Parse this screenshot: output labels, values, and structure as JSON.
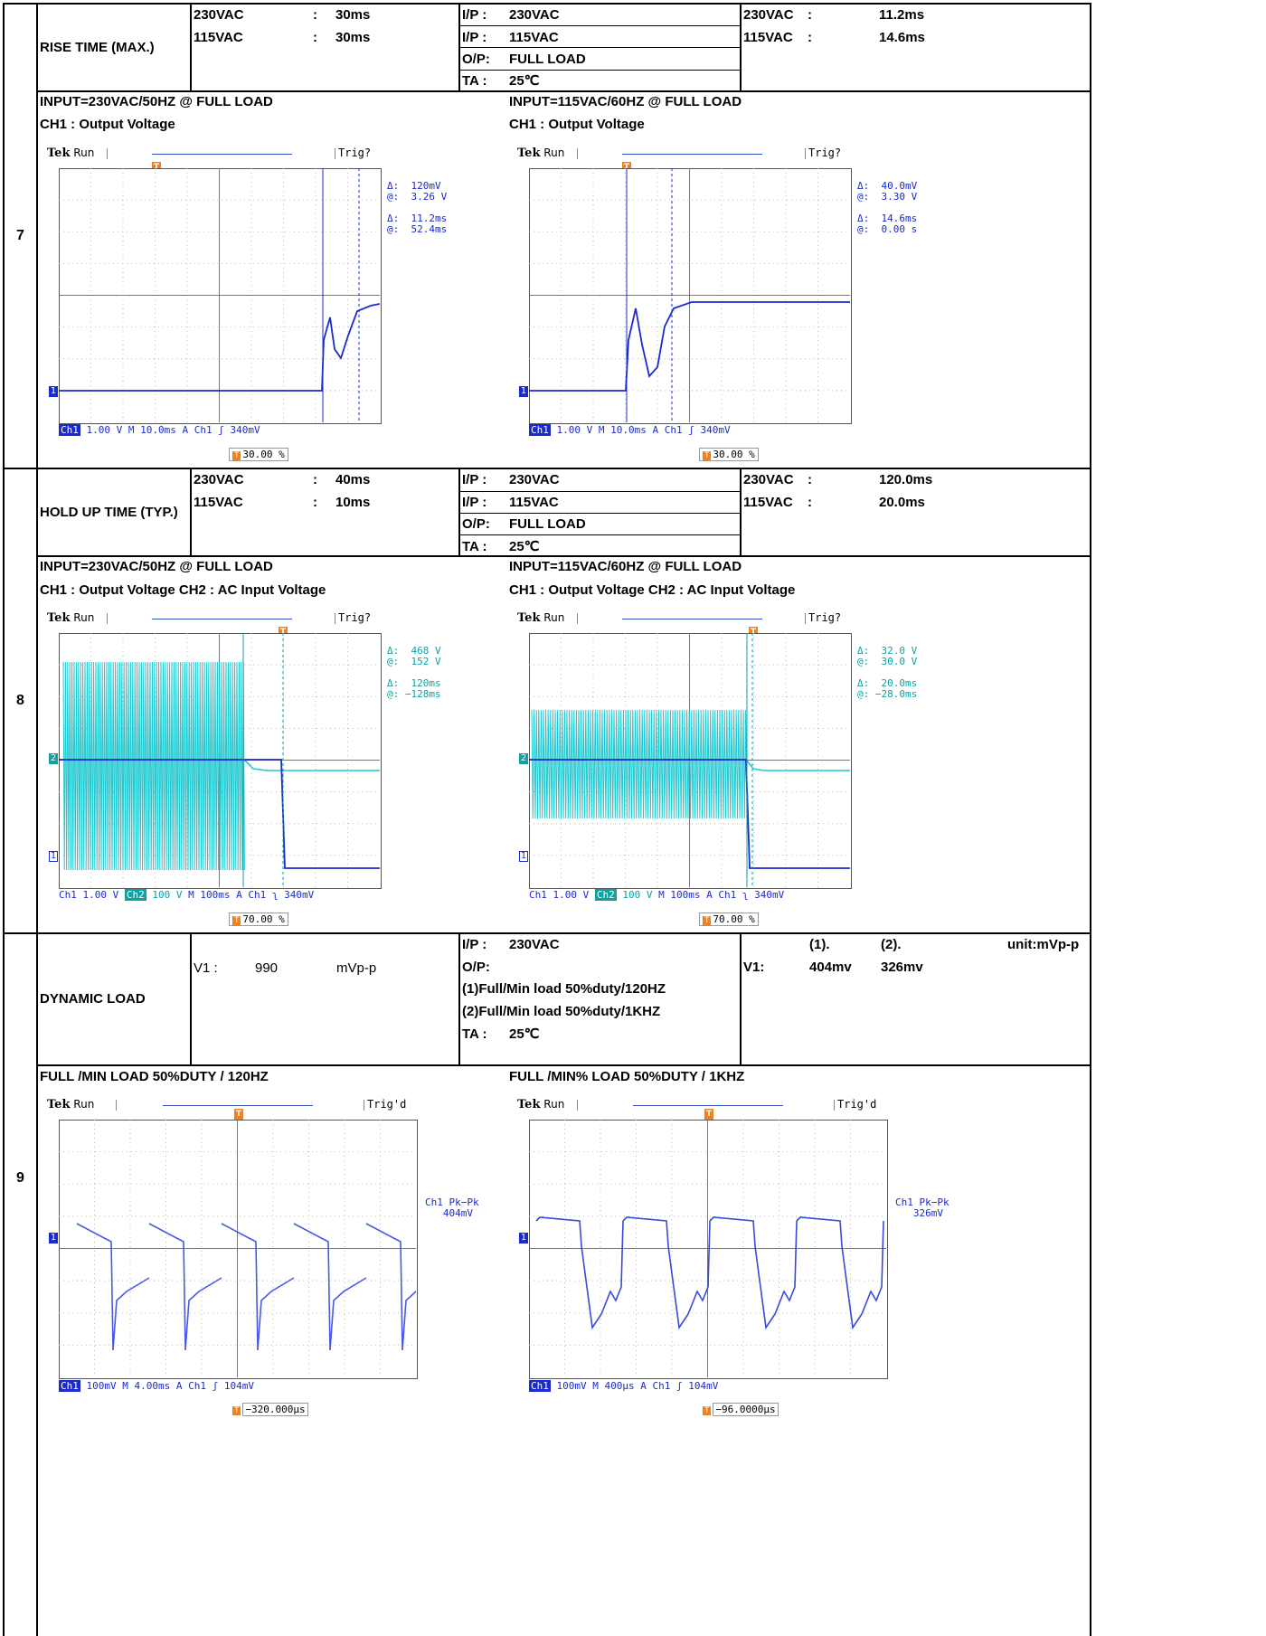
{
  "rows": [
    {
      "number": "7",
      "item": "RISE TIME (MAX.)",
      "spec": [
        {
          "input": "230VAC",
          "sep": ":",
          "value": "30ms"
        },
        {
          "input": "115VAC",
          "sep": ":",
          "value": "30ms"
        }
      ],
      "conditions": [
        {
          "label": "I/P :",
          "value": "230VAC"
        },
        {
          "label": "I/P :",
          "value": "115VAC"
        },
        {
          "label": "O/P:",
          "value": "FULL  LOAD"
        },
        {
          "label": "TA :",
          "value": "25℃"
        }
      ],
      "result": [
        {
          "input": "230VAC",
          "sep": ":",
          "value": "11.2ms"
        },
        {
          "input": "115VAC",
          "sep": ":",
          "value": "14.6ms"
        }
      ],
      "captions": [
        {
          "line1": "INPUT=230VAC/50HZ @ FULL LOAD",
          "line2": "CH1 : Output Voltage"
        },
        {
          "line1": "INPUT=115VAC/60HZ @ FULL LOAD",
          "line2": "CH1 : Output Voltage"
        }
      ],
      "scopes": [
        {
          "brand": "Tek",
          "state": "Run",
          "trig": "Trig?",
          "meas": "Δ:  120mV\n@:  3.26 V\n\nΔ:  11.2ms\n@:  52.4ms",
          "ch1": "Ch1",
          "ch1scale": "1.00 V",
          "time": "M 10.0ms",
          "trigsrc": "A  Ch1  ʃ  340mV",
          "pct": "30.00 %"
        },
        {
          "brand": "Tek",
          "state": "Run",
          "trig": "Trig?",
          "meas": "Δ:  40.0mV\n@:  3.30 V\n\nΔ:  14.6ms\n@:  0.00 s",
          "ch1": "Ch1",
          "ch1scale": "1.00 V",
          "time": "M 10.0ms",
          "trigsrc": "A  Ch1  ʃ  340mV",
          "pct": "30.00 %"
        }
      ]
    },
    {
      "number": "8",
      "item": "HOLD UP TIME (TYP.)",
      "spec": [
        {
          "input": "230VAC",
          "sep": ":",
          "value": "40ms"
        },
        {
          "input": "115VAC",
          "sep": ":",
          "value": "10ms"
        }
      ],
      "conditions": [
        {
          "label": "I/P :",
          "value": "230VAC"
        },
        {
          "label": "I/P :",
          "value": "115VAC"
        },
        {
          "label": "O/P:",
          "value": "FULL  LOAD"
        },
        {
          "label": "TA :",
          "value": "25℃"
        }
      ],
      "result": [
        {
          "input": "230VAC",
          "sep": ":",
          "value": "120.0ms"
        },
        {
          "input": "115VAC",
          "sep": ":",
          "value": "20.0ms"
        }
      ],
      "captions": [
        {
          "line1": "INPUT=230VAC/50HZ @ FULL LOAD",
          "line2": "CH1 : Output Voltage CH2 : AC Input Voltage"
        },
        {
          "line1": "INPUT=115VAC/60HZ @ FULL LOAD",
          "line2": "CH1 : Output Voltage CH2 : AC Input Voltage"
        }
      ],
      "scopes": [
        {
          "brand": "Tek",
          "state": "Run",
          "trig": "Trig?",
          "meas": "Δ:  468 V\n@:  152 V\n\nΔ:  120ms\n@: −128ms",
          "ch1": "Ch1",
          "ch1scale": "1.00 V",
          "ch2": "Ch2",
          "ch2scale": "100 V",
          "time": "M 100ms",
          "trigsrc": "A  Ch1  ʅ  340mV",
          "pct": "70.00 %"
        },
        {
          "brand": "Tek",
          "state": "Run",
          "trig": "Trig?",
          "meas": "Δ:  32.0 V\n@:  30.0 V\n\nΔ:  20.0ms\n@: −28.0ms",
          "ch1": "Ch1",
          "ch1scale": "1.00 V",
          "ch2": "Ch2",
          "ch2scale": "100 V",
          "time": "M 100ms",
          "trigsrc": "A  Ch1  ʅ  340mV",
          "pct": "70.00 %"
        }
      ]
    },
    {
      "number": "9",
      "item": "DYNAMIC LOAD",
      "spec_line": {
        "label": "V1 :",
        "value": "990",
        "unit": "mVp-p"
      },
      "conditions": [
        {
          "label": "I/P :",
          "value": "230VAC"
        },
        {
          "label": "O/P:",
          "value": ""
        },
        {
          "label": "",
          "value": "(1)Full/Min load 50%duty/120HZ"
        },
        {
          "label": "",
          "value": "(2)Full/Min load 50%duty/1KHZ"
        },
        {
          "label": "TA :",
          "value": "25℃"
        }
      ],
      "result_header": {
        "c1": "(1).",
        "c2": "(2).",
        "unit": "unit:mVp-p"
      },
      "result_line": {
        "label": "V1:",
        "v1": "404mv",
        "v2": "326mv"
      },
      "captions": [
        {
          "line1": "FULL /MIN LOAD 50%DUTY / 120HZ"
        },
        {
          "line1": "FULL /MIN% LOAD 50%DUTY / 1KHZ"
        }
      ],
      "scopes": [
        {
          "brand": "Tek",
          "state": "Run",
          "trig": "Trig'd",
          "meas": "Ch1 Pk−Pk\n   404mV",
          "ch1": "Ch1",
          "ch1scale": "100mV",
          "time": "M 4.00ms",
          "trigsrc": "A  Ch1  ʃ  104mV",
          "pct": "−320.000µs"
        },
        {
          "brand": "Tek",
          "state": "Run",
          "trig": "Trig'd",
          "meas": "Ch1 Pk−Pk\n   326mV",
          "ch1": "Ch1",
          "ch1scale": "100mV",
          "time": "M 400µs",
          "trigsrc": "A  Ch1  ʃ  104mV",
          "pct": "−96.0000µs"
        }
      ]
    }
  ]
}
